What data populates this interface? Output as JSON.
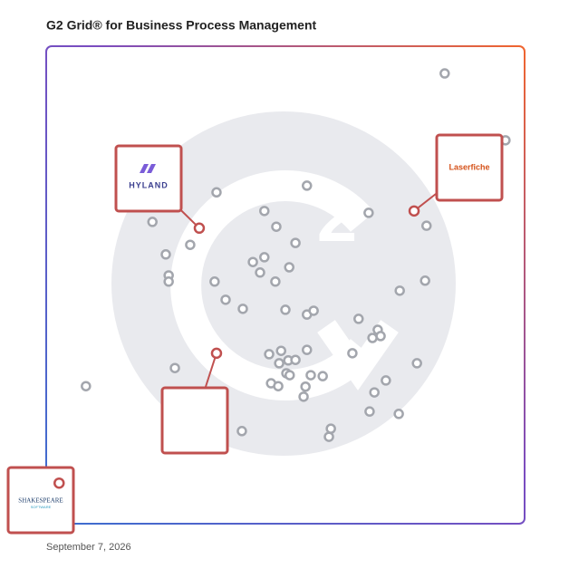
{
  "chart_data": {
    "type": "scatter",
    "title": "G2 Grid® for Business Process Management",
    "footer": "September 7, 2026",
    "xlim": [
      0,
      100
    ],
    "ylim": [
      0,
      100
    ],
    "color": "#a3a6ad",
    "highlight_color": "#c0504f",
    "x": [
      83.3,
      96.0,
      54.5,
      35.6,
      45.6,
      67.4,
      22.2,
      48.1,
      79.5,
      30.1,
      52.1,
      25.0,
      45.6,
      43.2,
      50.8,
      44.7,
      25.6,
      25.6,
      35.2,
      47.9,
      79.2,
      73.9,
      37.5,
      41.1,
      50.0,
      54.5,
      55.9,
      65.3,
      69.3,
      68.2,
      69.9,
      64.0,
      54.5,
      49.1,
      46.6,
      50.6,
      48.7,
      52.1,
      26.9,
      77.5,
      50.2,
      50.9,
      55.3,
      57.8,
      71.0,
      8.3,
      47.0,
      48.5,
      54.2,
      53.8,
      68.6,
      67.6,
      73.7,
      59.5,
      59.1,
      40.9
    ],
    "y": [
      94.3,
      80.3,
      70.8,
      69.4,
      65.5,
      65.1,
      63.2,
      62.2,
      62.4,
      58.4,
      58.8,
      56.4,
      55.8,
      54.8,
      53.7,
      52.6,
      52.0,
      50.7,
      50.7,
      50.7,
      50.9,
      48.8,
      46.9,
      45.0,
      44.8,
      43.8,
      44.6,
      42.9,
      40.6,
      38.9,
      39.3,
      35.7,
      36.4,
      36.2,
      35.5,
      34.2,
      33.6,
      34.3,
      32.6,
      33.6,
      31.5,
      31.1,
      31.1,
      30.9,
      30.0,
      28.8,
      29.4,
      28.8,
      28.7,
      26.6,
      27.5,
      23.5,
      23.0,
      19.9,
      18.2,
      19.4
    ],
    "highlights": [
      {
        "x": 32.0,
        "y": 61.9,
        "label": "HYLAND"
      },
      {
        "x": 76.9,
        "y": 65.5,
        "label": "Laserfiche"
      },
      {
        "x": 35.6,
        "y": 35.7
      },
      {
        "x": 2.7,
        "y": 8.5,
        "label": "SHAKESPEARE",
        "sublabel": "SOFTWARE"
      }
    ]
  }
}
